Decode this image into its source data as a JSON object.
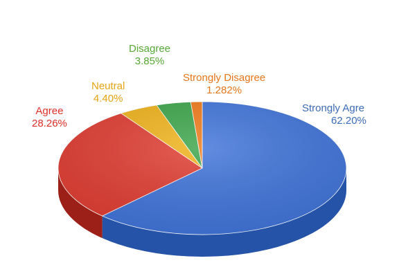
{
  "chart_data": {
    "type": "pie",
    "title": "",
    "slices": [
      {
        "label": "Strongly Agree",
        "display_label": "Strongly Agre",
        "value": 62.2,
        "value_label": "62.20%",
        "color": "#3f73d9",
        "dark": "#2553a8",
        "label_color": "#3f6fb8"
      },
      {
        "label": "Agree",
        "display_label": "Agree",
        "value": 28.26,
        "value_label": "28.26%",
        "color": "#e03c31",
        "dark": "#9c2018",
        "label_color": "#e0332b"
      },
      {
        "label": "Neutral",
        "display_label": "Neutral",
        "value": 4.4,
        "value_label": "4.40%",
        "color": "#f0b31a",
        "dark": "#b58010",
        "label_color": "#e8a816"
      },
      {
        "label": "Disagree",
        "display_label": "Disagree",
        "value": 3.85,
        "value_label": "3.85%",
        "color": "#3ba54a",
        "dark": "#237030",
        "label_color": "#5aaa3a"
      },
      {
        "label": "Strongly Disagree",
        "display_label": "Strongly Disagree",
        "value": 1.282,
        "value_label": "1.282%",
        "color": "#f07a1a",
        "dark": "#b0550e",
        "label_color": "#e8791e"
      }
    ],
    "style": "3d-pie",
    "legend": "none"
  }
}
